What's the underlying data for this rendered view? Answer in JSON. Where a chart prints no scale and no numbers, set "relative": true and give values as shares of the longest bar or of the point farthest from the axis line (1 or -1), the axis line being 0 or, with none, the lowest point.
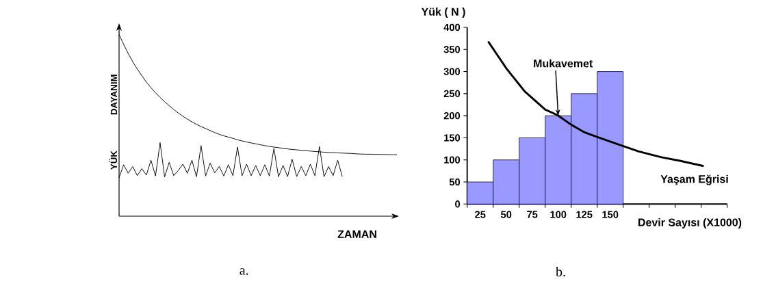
{
  "chart_data": [
    {
      "type": "line",
      "relative": true,
      "xlabel": "ZAMAN",
      "annotations": [
        "a."
      ],
      "categories": [
        null,
        null,
        null,
        null,
        null,
        null,
        null,
        null,
        null,
        null,
        null,
        null,
        null,
        null,
        null,
        null,
        null,
        null,
        null,
        null,
        null,
        null,
        null,
        null,
        null,
        null,
        null,
        null,
        null,
        null,
        null,
        null,
        null,
        null,
        null,
        null,
        null,
        null,
        null,
        null,
        null,
        null,
        null,
        null,
        null,
        null,
        null,
        null,
        null,
        null,
        null,
        null,
        null,
        null,
        null,
        null,
        null,
        null,
        null,
        null,
        null,
        null
      ],
      "series": [
        {
          "name": "DAYANIM",
          "color": "#000000",
          "values": [
            1.0,
            0.945,
            0.895,
            0.85,
            0.809,
            0.773,
            0.737,
            0.707,
            0.679,
            0.653,
            0.63,
            0.608,
            0.587,
            0.567,
            0.55,
            0.534,
            0.519,
            0.505,
            0.493,
            0.482,
            0.471,
            0.46,
            0.45,
            0.442,
            0.435,
            0.428,
            0.42,
            0.414,
            0.408,
            0.403,
            0.398,
            0.393,
            0.388,
            0.384,
            0.38,
            0.377,
            0.373,
            0.37,
            0.367,
            0.365,
            0.362,
            0.36,
            0.358,
            0.356,
            0.354,
            0.352,
            0.35,
            0.349,
            0.348,
            0.347,
            0.346,
            0.345,
            0.343,
            0.342,
            0.341,
            0.341,
            0.34,
            0.34,
            0.339,
            0.339,
            0.338,
            0.338
          ]
        },
        {
          "name": "YÜK",
          "color": "#000000",
          "values": [
            0.211,
            0.283,
            0.236,
            0.273,
            0.223,
            0.261,
            0.226,
            0.308,
            0.221,
            0.405,
            0.216,
            0.296,
            0.223,
            0.251,
            0.286,
            0.236,
            0.308,
            0.217,
            0.388,
            0.221,
            0.292,
            0.238,
            0.273,
            0.221,
            0.283,
            0.223,
            0.38,
            0.223,
            0.286,
            0.223,
            0.279,
            0.223,
            0.283,
            0.221,
            0.373,
            0.217,
            0.279,
            0.218,
            0.313,
            0.218,
            0.273,
            0.223,
            0.286,
            0.223,
            0.383,
            0.217,
            0.273,
            0.223,
            0.308,
            0.218,
            null,
            null,
            null,
            null,
            null,
            null,
            null,
            null,
            null,
            null,
            null,
            null
          ]
        }
      ]
    },
    {
      "type": "bar",
      "ylabel": "Yük ( N )",
      "xlabel": "Devir Sayısı (X1000)",
      "x": [
        25,
        50,
        75,
        100,
        125,
        150
      ],
      "xlim": [
        12.5,
        262.5
      ],
      "xticks": [
        25,
        50,
        75,
        100,
        125,
        150,
        {
          "value": 12.5,
          "label": null
        },
        {
          "value": 37.5,
          "label": null
        },
        {
          "value": 62.5,
          "label": null
        },
        {
          "value": 87.5,
          "label": null
        },
        {
          "value": 112.5,
          "label": null
        },
        {
          "value": 137.5,
          "label": null
        },
        {
          "value": 162.5,
          "label": null
        },
        {
          "value": 187.5,
          "label": null
        },
        {
          "value": 212.5,
          "label": null
        },
        {
          "value": 237.5,
          "label": null
        },
        {
          "value": 262.5,
          "label": null
        }
      ],
      "ylim": [
        0,
        400
      ],
      "yticks": [
        0,
        50,
        100,
        150,
        200,
        250,
        300,
        350,
        400
      ],
      "annotations": [
        {
          "text": "Mukavemet",
          "x": 100,
          "y": 200
        },
        "b."
      ],
      "series": [
        {
          "color": "#9999ff",
          "values": [
            50,
            100,
            150,
            200,
            250,
            300
          ]
        },
        {
          "name": "Yaşam Eğrisi",
          "type": "line",
          "color": "#000000",
          "x": [
            32.7,
            50.2,
            67.8,
            87.5,
            99.6,
            111.6,
            124.8,
            137.3,
            155.5,
            177.4,
            199.3,
            216.9,
            239.9
          ],
          "values": [
            368,
            307,
            255,
            214,
            201,
            181,
            163,
            152,
            137,
            119,
            106,
            98,
            86
          ]
        }
      ]
    }
  ]
}
